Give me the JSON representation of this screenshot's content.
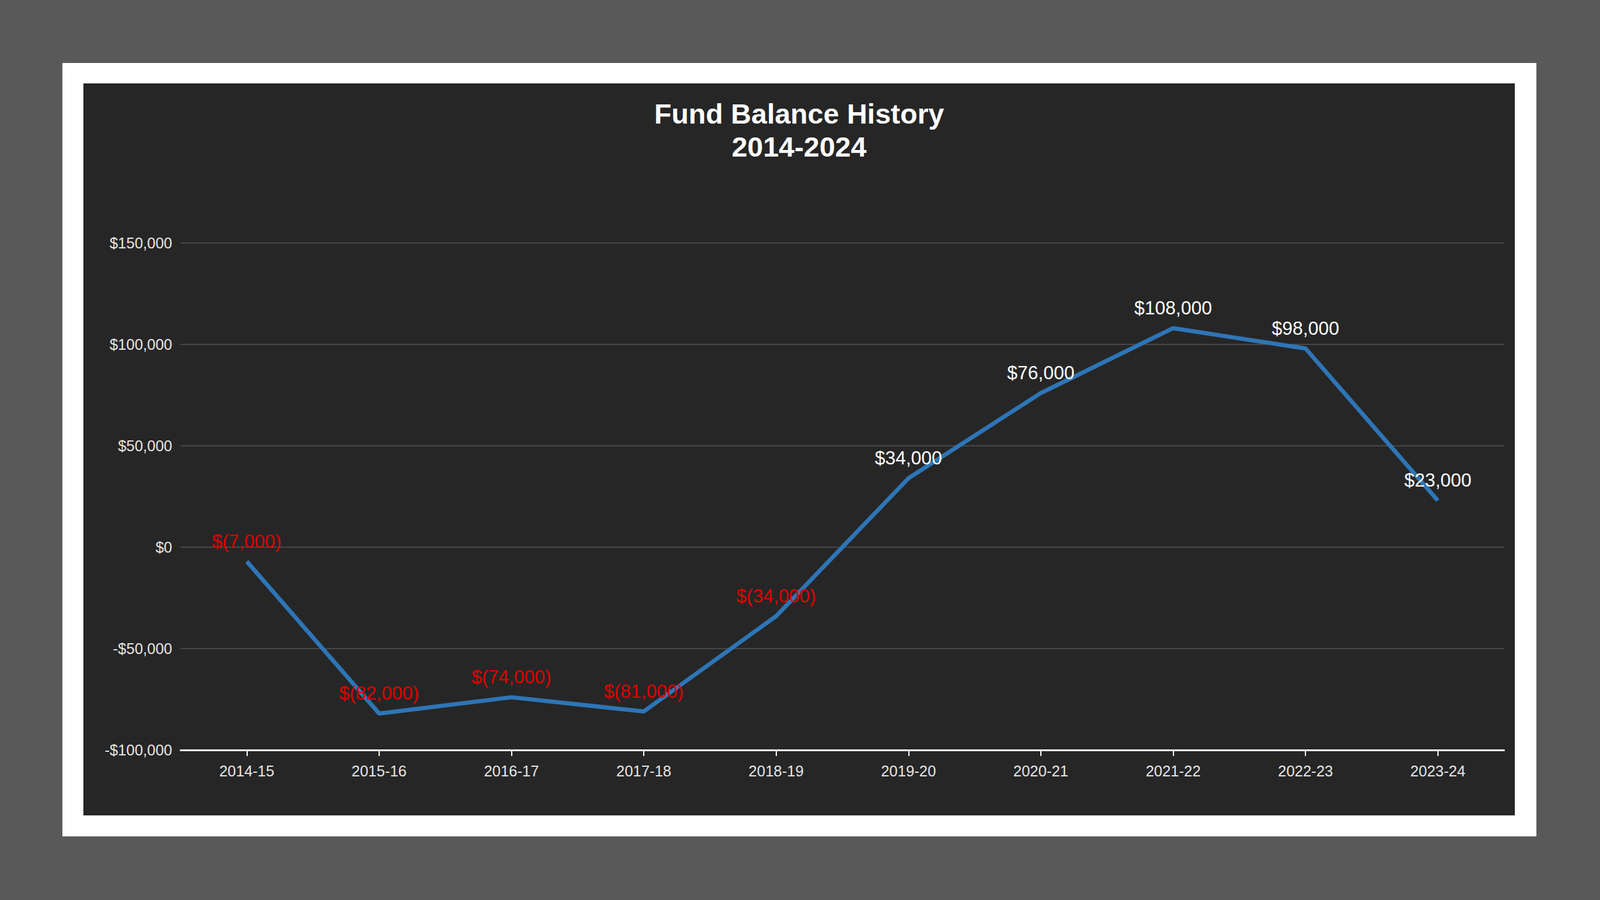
{
  "chart_data": {
    "type": "line",
    "title": "Fund Balance History",
    "subtitle": "2014-2024",
    "categories": [
      "2014-15",
      "2015-16",
      "2016-17",
      "2017-18",
      "2018-19",
      "2019-20",
      "2020-21",
      "2021-22",
      "2022-23",
      "2023-24"
    ],
    "values": [
      -7000,
      -82000,
      -74000,
      -81000,
      -34000,
      34000,
      76000,
      108000,
      98000,
      23000
    ],
    "value_labels": [
      "$(7,000)",
      "$(82,000)",
      "$(74,000)",
      "$(81,000)",
      "$(34,000)",
      "$34,000",
      "$76,000",
      "$108,000",
      "$98,000",
      "$23,000"
    ],
    "color": "#2e75b6",
    "ylim": [
      -100000,
      150000
    ],
    "yticks": [
      {
        "value": -100000,
        "label": "-$100,000"
      },
      {
        "value": -50000,
        "label": "-$50,000"
      },
      {
        "value": 0,
        "label": "$0"
      },
      {
        "value": 50000,
        "label": "$50,000"
      },
      {
        "value": 100000,
        "label": "$100,000"
      },
      {
        "value": 150000,
        "label": "$150,000"
      }
    ],
    "grid": true,
    "data_labels": true
  }
}
